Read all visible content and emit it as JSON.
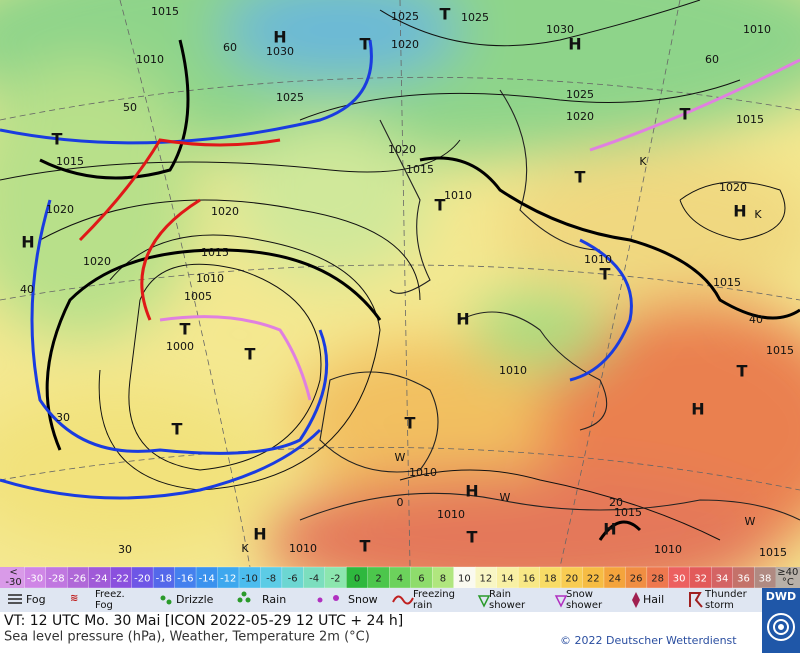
{
  "map": {
    "labels": [
      "1015",
      "1025",
      "T",
      "1025",
      "1030",
      "H",
      "1010",
      "1030",
      "H",
      "1020",
      "T",
      "1010",
      "1025",
      "1025",
      "1020",
      "T",
      "1015",
      "1015",
      "T",
      "1020",
      "1015",
      "T",
      "1010",
      "T",
      "1020",
      "1020",
      "H",
      "H",
      "1020",
      "1015",
      "1020",
      "1010",
      "1010",
      "T",
      "1005",
      "H",
      "T",
      "1000",
      "T",
      "1015",
      "40",
      "40",
      "1015",
      "1010",
      "T",
      "H",
      "T",
      "30",
      "T",
      "1010",
      "H",
      "1010",
      "T",
      "1015",
      "H",
      "H",
      "T",
      "1010",
      "1010",
      "1015",
      "20",
      "0",
      "30",
      "50",
      "60",
      "60",
      "K",
      "K",
      "K",
      "W",
      "W",
      "W"
    ]
  },
  "scale": {
    "low": [
      "<",
      "-30"
    ],
    "steps": [
      -30,
      -28,
      -26,
      -24,
      -22,
      -20,
      -18,
      -16,
      -14,
      -12,
      -10,
      -8,
      -6,
      -4,
      -2,
      0,
      2,
      4,
      6,
      8,
      10,
      12,
      14,
      16,
      18,
      20,
      22,
      24,
      26,
      28,
      30,
      32,
      34,
      36,
      38
    ],
    "colors": [
      "#cf86e6",
      "#c077e0",
      "#b068d8",
      "#a05ad8",
      "#8a50de",
      "#6e56e6",
      "#5468ea",
      "#4480ee",
      "#3a92ee",
      "#3ea8ee",
      "#4cbcee",
      "#5ccce6",
      "#6cd6d2",
      "#7cdebe",
      "#8ce6ae",
      "#2eb83e",
      "#4cc64c",
      "#6cd25c",
      "#8edc6c",
      "#b0e67e",
      "#fafaf0",
      "#f8f6c4",
      "#f8f0a4",
      "#f8e886",
      "#f8dc66",
      "#f8cc52",
      "#f6bc44",
      "#f4a43c",
      "#f08e42",
      "#ee784e",
      "#ec6060",
      "#e25a5a",
      "#d46464",
      "#c4726a",
      "#b08a82"
    ],
    "high": [
      "≥40",
      "°C"
    ],
    "low_color": "#d99ae8",
    "high_color": "#b8b0a8"
  },
  "legend": {
    "items": [
      {
        "label": [
          "Fog"
        ]
      },
      {
        "label": [
          "Freez.",
          "Fog"
        ]
      },
      {
        "label": [
          "Drizzle"
        ]
      },
      {
        "label": [
          "Rain"
        ]
      },
      {
        "label": [
          "Snow"
        ]
      },
      {
        "label": [
          "Freezing",
          "rain"
        ]
      },
      {
        "label": [
          "Rain",
          "shower"
        ]
      },
      {
        "label": [
          "Snow",
          "shower"
        ]
      },
      {
        "label": [
          "Hail"
        ]
      },
      {
        "label": [
          "Thunder",
          "storm"
        ]
      }
    ]
  },
  "footer": {
    "line1": "VT: 12 UTC Mo.  30 Mai [ICON 2022-05-29  12 UTC + 24 h]",
    "line2": "Sea level pressure (hPa), Weather, Temperature 2m (°C)",
    "copyright": "© 2022 Deutscher Wetterdienst",
    "logo": "DWD"
  }
}
